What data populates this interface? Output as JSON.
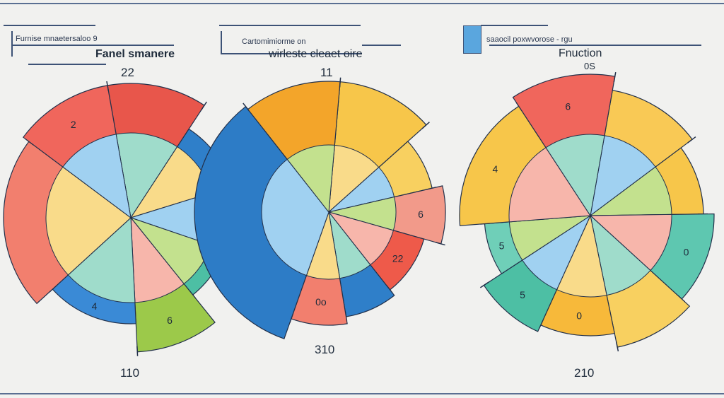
{
  "chart_data": [
    {
      "type": "pie",
      "header": "Furnise mnaetersaloo 9",
      "title": "Fanel smanere",
      "top_label": "22",
      "bottom_label": "110",
      "slices": [
        {
          "value": 12,
          "color": "#e8564b",
          "label": ""
        },
        {
          "value": 11,
          "color": "#2f7fc9",
          "label": ""
        },
        {
          "value": 10,
          "color": "#f2ad2b",
          "label": ""
        },
        {
          "value": 9,
          "color": "#4dbfa4",
          "label": ""
        },
        {
          "value": 10,
          "color": "#9cc94a",
          "label": "6"
        },
        {
          "value": 14,
          "color": "#3a8ad6",
          "label": "4"
        },
        {
          "value": 22,
          "color": "#f27f6e",
          "label": ""
        },
        {
          "value": 12,
          "color": "#f0665c",
          "label": "2"
        }
      ]
    },
    {
      "type": "pie",
      "header": "Cartomimiorme on",
      "title": "wirleste cleaet oire",
      "top_label": "11",
      "bottom_label": "310",
      "slices": [
        {
          "value": 12,
          "color": "#f7c64a",
          "label": ""
        },
        {
          "value": 8,
          "color": "#f8d060",
          "label": ""
        },
        {
          "value": 8,
          "color": "#f29a8a",
          "label": "6"
        },
        {
          "value": 10,
          "color": "#ee5a4a",
          "label": "22"
        },
        {
          "value": 8,
          "color": "#2f7fc9",
          "label": ""
        },
        {
          "value": 8,
          "color": "#f27f6e",
          "label": "0o"
        },
        {
          "value": 34,
          "color": "#2d7cc6",
          "label": ""
        },
        {
          "value": 12,
          "color": "#f3a52a",
          "label": ""
        }
      ]
    },
    {
      "type": "pie",
      "header": "saaocil poxwvorose - rgu",
      "title": "Fnuction",
      "top_label": "0S",
      "bottom_label": "210",
      "slices": [
        {
          "value": 12,
          "color": "#f9c955",
          "label": ""
        },
        {
          "value": 10,
          "color": "#f7c64a",
          "label": ""
        },
        {
          "value": 12,
          "color": "#5ec7b0",
          "label": "0"
        },
        {
          "value": 10,
          "color": "#f8d060",
          "label": ""
        },
        {
          "value": 10,
          "color": "#f7b93a",
          "label": "0"
        },
        {
          "value": 9,
          "color": "#4dbfa4",
          "label": "5"
        },
        {
          "value": 8,
          "color": "#6fcfb8",
          "label": "5"
        },
        {
          "value": 17,
          "color": "#f7c64a",
          "label": "4"
        },
        {
          "value": 12,
          "color": "#f0665c",
          "label": "6"
        }
      ]
    }
  ]
}
